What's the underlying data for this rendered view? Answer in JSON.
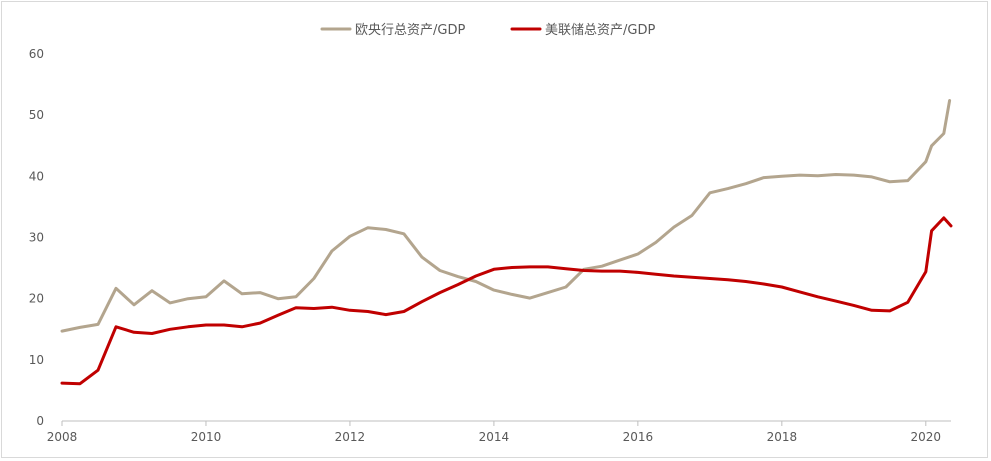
{
  "chart_data": {
    "type": "line",
    "title": "",
    "xlabel": "",
    "ylabel": "",
    "xlim": [
      2008,
      2020.35
    ],
    "ylim": [
      0,
      60
    ],
    "x_ticks": [
      "2008",
      "2010",
      "2012",
      "2014",
      "2016",
      "2018",
      "2020"
    ],
    "y_ticks": [
      "0",
      "10",
      "20",
      "30",
      "40",
      "50",
      "60"
    ],
    "grid": false,
    "legend_position": "top-center",
    "series": [
      {
        "name": "欧央行总资产/GDP",
        "color": "#b3a58e",
        "x": [
          2008.0,
          2008.25,
          2008.5,
          2008.75,
          2009.0,
          2009.25,
          2009.5,
          2009.75,
          2010.0,
          2010.25,
          2010.5,
          2010.75,
          2011.0,
          2011.25,
          2011.5,
          2011.75,
          2012.0,
          2012.25,
          2012.5,
          2012.75,
          2013.0,
          2013.25,
          2013.5,
          2013.75,
          2014.0,
          2014.25,
          2014.5,
          2014.75,
          2015.0,
          2015.25,
          2015.5,
          2015.75,
          2016.0,
          2016.25,
          2016.5,
          2016.75,
          2017.0,
          2017.25,
          2017.5,
          2017.75,
          2018.0,
          2018.25,
          2018.5,
          2018.75,
          2019.0,
          2019.25,
          2019.5,
          2019.75,
          2020.0,
          2020.08,
          2020.25,
          2020.33
        ],
        "values": [
          14.7,
          15.3,
          15.8,
          21.7,
          19.0,
          21.3,
          19.3,
          20.0,
          20.3,
          22.9,
          20.8,
          21.0,
          20.0,
          20.3,
          23.3,
          27.8,
          30.2,
          31.6,
          31.3,
          30.6,
          26.8,
          24.6,
          23.6,
          22.8,
          21.4,
          20.7,
          20.1,
          21.0,
          21.9,
          24.8,
          25.3,
          26.3,
          27.3,
          29.2,
          31.7,
          33.6,
          37.3,
          38.0,
          38.8,
          39.8,
          40.0,
          40.2,
          40.1,
          40.3,
          40.2,
          39.9,
          39.1,
          39.3,
          42.4,
          45.0,
          47.0,
          52.4
        ]
      },
      {
        "name": "美联储总资产/GDP",
        "color": "#c00000",
        "x": [
          2008.0,
          2008.25,
          2008.5,
          2008.75,
          2009.0,
          2009.25,
          2009.5,
          2009.75,
          2010.0,
          2010.25,
          2010.5,
          2010.75,
          2011.0,
          2011.25,
          2011.5,
          2011.75,
          2012.0,
          2012.25,
          2012.5,
          2012.75,
          2013.0,
          2013.25,
          2013.5,
          2013.75,
          2014.0,
          2014.25,
          2014.5,
          2014.75,
          2015.0,
          2015.25,
          2015.5,
          2015.75,
          2016.0,
          2016.25,
          2016.5,
          2016.75,
          2017.0,
          2017.25,
          2017.5,
          2017.75,
          2018.0,
          2018.25,
          2018.5,
          2018.75,
          2019.0,
          2019.25,
          2019.5,
          2019.75,
          2020.0,
          2020.08,
          2020.25,
          2020.35
        ],
        "values": [
          6.2,
          6.1,
          8.3,
          15.4,
          14.5,
          14.3,
          15.0,
          15.4,
          15.7,
          15.7,
          15.4,
          16.0,
          17.3,
          18.5,
          18.4,
          18.6,
          18.1,
          17.9,
          17.4,
          17.9,
          19.5,
          21.0,
          22.3,
          23.7,
          24.8,
          25.1,
          25.2,
          25.2,
          24.9,
          24.6,
          24.5,
          24.5,
          24.3,
          24.0,
          23.7,
          23.5,
          23.3,
          23.1,
          22.8,
          22.4,
          21.9,
          21.1,
          20.3,
          19.6,
          18.9,
          18.1,
          18.0,
          19.4,
          24.4,
          31.1,
          33.2,
          31.9
        ]
      }
    ]
  }
}
